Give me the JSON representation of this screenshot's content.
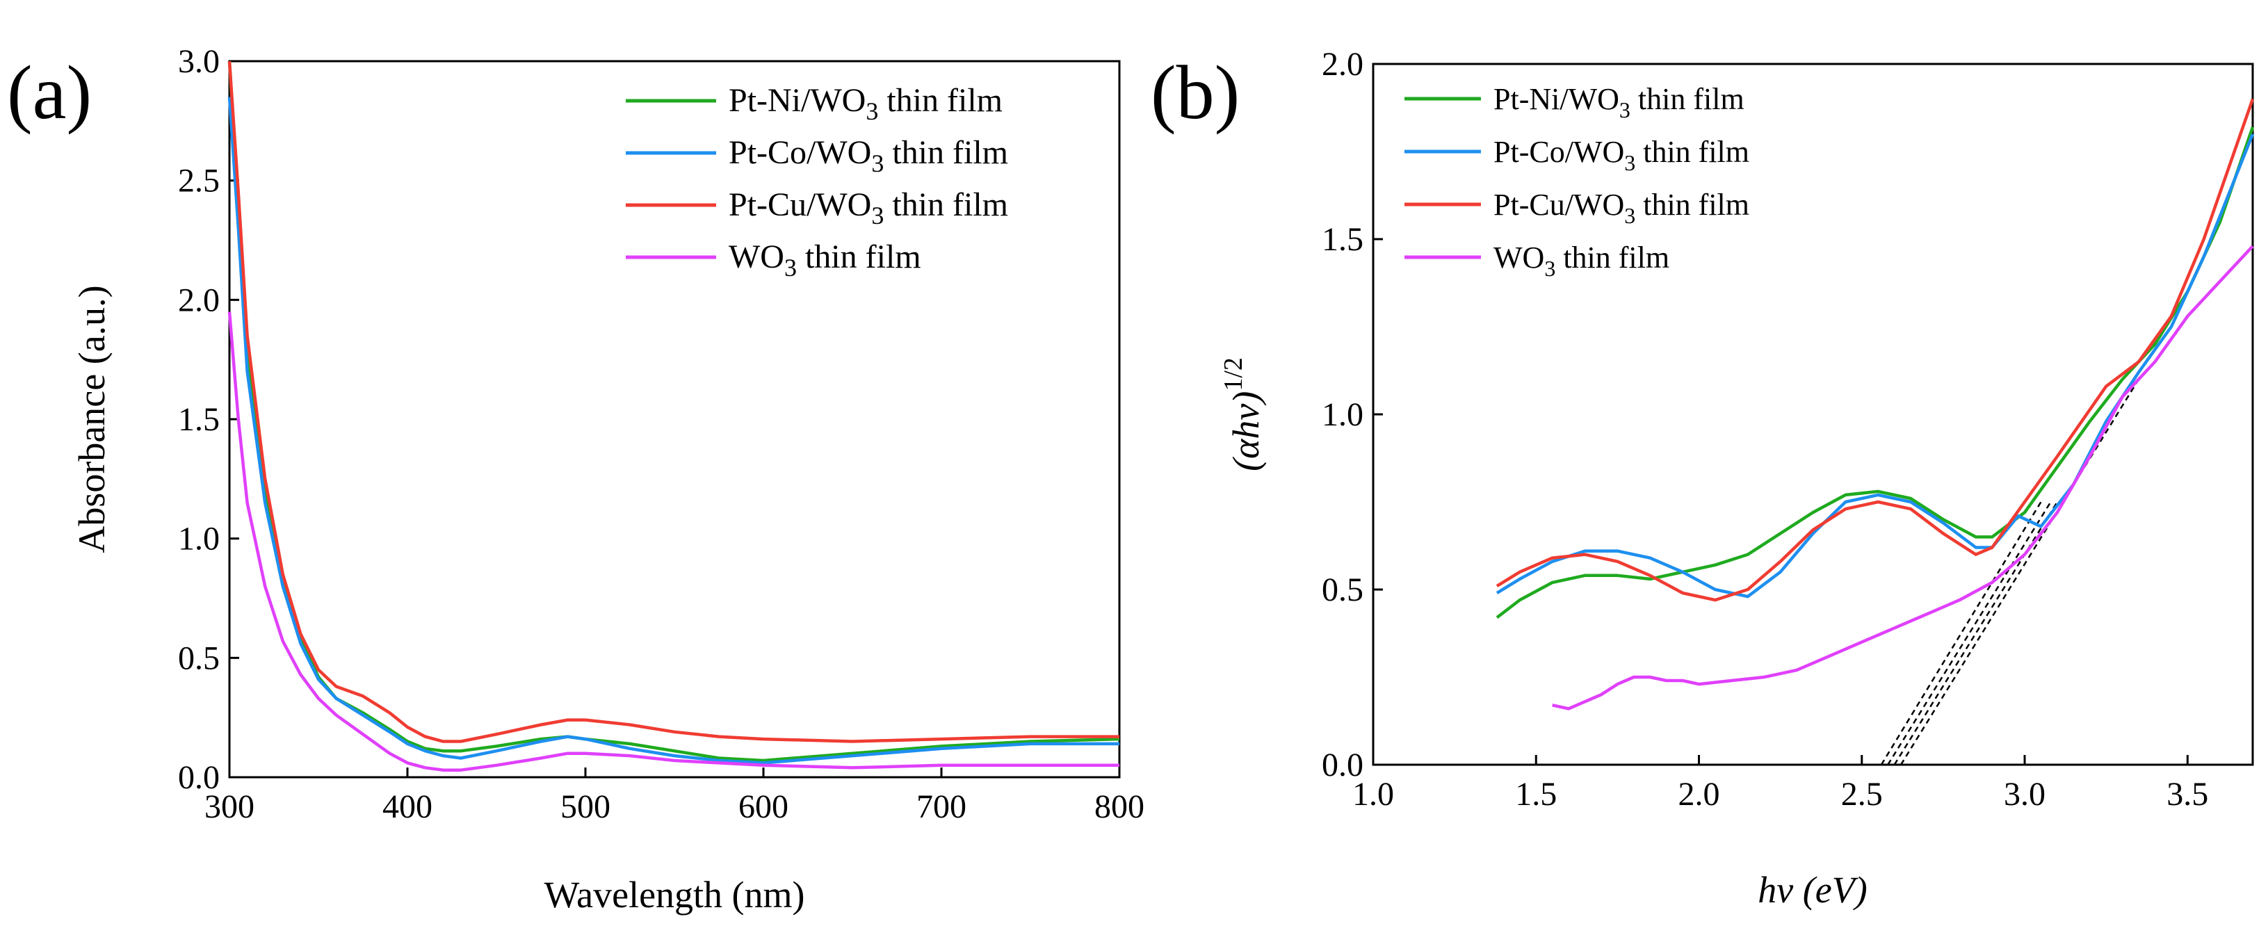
{
  "chart_data": [
    {
      "type": "line",
      "panel_label": "(a)",
      "xlabel": "Wavelength (nm)",
      "ylabel": "Absorbance (a.u.)",
      "xlim": [
        300,
        800
      ],
      "ylim": [
        0,
        3.0
      ],
      "xticks": [
        300,
        400,
        500,
        600,
        700,
        800
      ],
      "yticks": [
        0.0,
        0.5,
        1.0,
        1.5,
        2.0,
        2.5,
        3.0
      ],
      "legend": {
        "position": "top-right",
        "entries": [
          {
            "base": "Pt-Ni/WO",
            "sub": "3",
            "tail": " thin film"
          },
          {
            "base": "Pt-Co/WO",
            "sub": "3",
            "tail": " thin film"
          },
          {
            "base": "Pt-Cu/WO",
            "sub": "3",
            "tail": " thin film"
          },
          {
            "base": "WO",
            "sub": "3",
            "tail": " thin film"
          }
        ]
      },
      "series": [
        {
          "name": "Pt-Ni/WO3 thin film",
          "color": "#1faa1f",
          "x": [
            300,
            305,
            310,
            320,
            330,
            340,
            350,
            360,
            375,
            390,
            400,
            410,
            420,
            430,
            450,
            475,
            490,
            500,
            525,
            550,
            575,
            600,
            650,
            700,
            750,
            800
          ],
          "y": [
            3.0,
            2.4,
            1.8,
            1.2,
            0.82,
            0.58,
            0.42,
            0.33,
            0.27,
            0.2,
            0.15,
            0.12,
            0.11,
            0.11,
            0.13,
            0.16,
            0.17,
            0.16,
            0.14,
            0.11,
            0.08,
            0.07,
            0.1,
            0.13,
            0.15,
            0.16
          ]
        },
        {
          "name": "Pt-Co/WO3 thin film",
          "color": "#1e8fef",
          "x": [
            300,
            305,
            310,
            320,
            330,
            340,
            350,
            360,
            375,
            390,
            400,
            410,
            420,
            430,
            450,
            475,
            490,
            500,
            525,
            550,
            575,
            600,
            650,
            700,
            750,
            800
          ],
          "y": [
            2.85,
            2.3,
            1.7,
            1.15,
            0.8,
            0.56,
            0.41,
            0.33,
            0.26,
            0.19,
            0.14,
            0.11,
            0.09,
            0.08,
            0.11,
            0.15,
            0.17,
            0.16,
            0.12,
            0.09,
            0.07,
            0.06,
            0.09,
            0.12,
            0.14,
            0.14
          ]
        },
        {
          "name": "Pt-Cu/WO3 thin film",
          "color": "#f03c32",
          "x": [
            300,
            305,
            310,
            320,
            330,
            340,
            350,
            360,
            375,
            390,
            400,
            410,
            420,
            430,
            450,
            475,
            490,
            500,
            525,
            550,
            575,
            600,
            650,
            700,
            750,
            800
          ],
          "y": [
            3.0,
            2.45,
            1.85,
            1.25,
            0.85,
            0.6,
            0.45,
            0.38,
            0.34,
            0.27,
            0.21,
            0.17,
            0.15,
            0.15,
            0.18,
            0.22,
            0.24,
            0.24,
            0.22,
            0.19,
            0.17,
            0.16,
            0.15,
            0.16,
            0.17,
            0.17
          ]
        },
        {
          "name": "WO3 thin film",
          "color": "#e040fb",
          "x": [
            300,
            305,
            310,
            320,
            330,
            340,
            350,
            360,
            375,
            390,
            400,
            410,
            420,
            430,
            450,
            475,
            490,
            500,
            525,
            550,
            575,
            600,
            650,
            700,
            750,
            800
          ],
          "y": [
            1.95,
            1.5,
            1.15,
            0.8,
            0.57,
            0.43,
            0.33,
            0.26,
            0.18,
            0.1,
            0.06,
            0.04,
            0.03,
            0.03,
            0.05,
            0.08,
            0.1,
            0.1,
            0.09,
            0.07,
            0.06,
            0.05,
            0.04,
            0.05,
            0.05,
            0.05
          ]
        }
      ]
    },
    {
      "type": "line",
      "panel_label": "(b)",
      "xlabel": "hν (eV)",
      "ylabel_main": "(αhν)",
      "ylabel_sup": "1/2",
      "xlim": [
        1.0,
        3.7
      ],
      "ylim": [
        0,
        2.0
      ],
      "xticks": [
        1.0,
        1.5,
        2.0,
        2.5,
        3.0,
        3.5
      ],
      "yticks": [
        0.0,
        0.5,
        1.0,
        1.5,
        2.0
      ],
      "legend": {
        "position": "top-left",
        "entries": [
          {
            "base": "Pt-Ni/WO",
            "sub": "3",
            "tail": " thin film"
          },
          {
            "base": "Pt-Co/WO",
            "sub": "3",
            "tail": " thin film"
          },
          {
            "base": "Pt-Cu/WO",
            "sub": "3",
            "tail": " thin film"
          },
          {
            "base": "WO",
            "sub": "3",
            "tail": " thin film"
          }
        ]
      },
      "series": [
        {
          "name": "Pt-Ni/WO3 thin film",
          "color": "#1faa1f",
          "x": [
            1.38,
            1.45,
            1.55,
            1.65,
            1.75,
            1.85,
            1.95,
            2.05,
            2.15,
            2.25,
            2.35,
            2.45,
            2.55,
            2.65,
            2.75,
            2.85,
            2.9,
            3.0,
            3.1,
            3.2,
            3.3,
            3.4,
            3.5,
            3.6,
            3.7
          ],
          "y": [
            0.42,
            0.47,
            0.52,
            0.54,
            0.54,
            0.53,
            0.55,
            0.57,
            0.6,
            0.66,
            0.72,
            0.77,
            0.78,
            0.76,
            0.7,
            0.65,
            0.65,
            0.72,
            0.85,
            0.98,
            1.1,
            1.2,
            1.35,
            1.55,
            1.82
          ]
        },
        {
          "name": "Pt-Co/WO3 thin film",
          "color": "#1e8fef",
          "x": [
            1.38,
            1.45,
            1.55,
            1.65,
            1.75,
            1.85,
            1.95,
            2.05,
            2.15,
            2.25,
            2.35,
            2.45,
            2.55,
            2.65,
            2.75,
            2.85,
            2.9,
            2.98,
            3.05,
            3.15,
            3.25,
            3.35,
            3.45,
            3.55,
            3.7
          ],
          "y": [
            0.49,
            0.53,
            0.58,
            0.61,
            0.61,
            0.59,
            0.55,
            0.5,
            0.48,
            0.55,
            0.66,
            0.75,
            0.77,
            0.75,
            0.69,
            0.62,
            0.62,
            0.71,
            0.68,
            0.8,
            0.98,
            1.12,
            1.25,
            1.45,
            1.8
          ]
        },
        {
          "name": "Pt-Cu/WO3 thin film",
          "color": "#f03c32",
          "x": [
            1.38,
            1.45,
            1.55,
            1.65,
            1.75,
            1.85,
            1.95,
            2.05,
            2.15,
            2.25,
            2.35,
            2.45,
            2.55,
            2.65,
            2.75,
            2.85,
            2.9,
            3.0,
            3.1,
            3.25,
            3.35,
            3.45,
            3.55,
            3.7
          ],
          "y": [
            0.51,
            0.55,
            0.59,
            0.6,
            0.58,
            0.54,
            0.49,
            0.47,
            0.5,
            0.58,
            0.67,
            0.73,
            0.75,
            0.73,
            0.66,
            0.6,
            0.62,
            0.75,
            0.88,
            1.08,
            1.15,
            1.28,
            1.5,
            1.9
          ]
        },
        {
          "name": "WO3 thin film",
          "color": "#e040fb",
          "x": [
            1.55,
            1.6,
            1.65,
            1.7,
            1.75,
            1.8,
            1.85,
            1.9,
            1.95,
            2.0,
            2.1,
            2.2,
            2.3,
            2.4,
            2.5,
            2.6,
            2.7,
            2.8,
            2.9,
            3.0,
            3.1,
            3.2,
            3.3,
            3.4,
            3.5,
            3.6,
            3.7
          ],
          "y": [
            0.17,
            0.16,
            0.18,
            0.2,
            0.23,
            0.25,
            0.25,
            0.24,
            0.24,
            0.23,
            0.24,
            0.25,
            0.27,
            0.31,
            0.35,
            0.39,
            0.43,
            0.47,
            0.52,
            0.6,
            0.72,
            0.88,
            1.05,
            1.15,
            1.28,
            1.38,
            1.48
          ]
        }
      ],
      "tangent_lines": [
        {
          "x": [
            2.56,
            3.05
          ],
          "y": [
            0.0,
            0.75
          ]
        },
        {
          "x": [
            2.58,
            3.08
          ],
          "y": [
            0.0,
            0.75
          ]
        },
        {
          "x": [
            2.6,
            3.1
          ],
          "y": [
            0.0,
            0.75
          ]
        },
        {
          "x": [
            2.62,
            3.35
          ],
          "y": [
            0.0,
            1.1
          ]
        }
      ]
    }
  ]
}
